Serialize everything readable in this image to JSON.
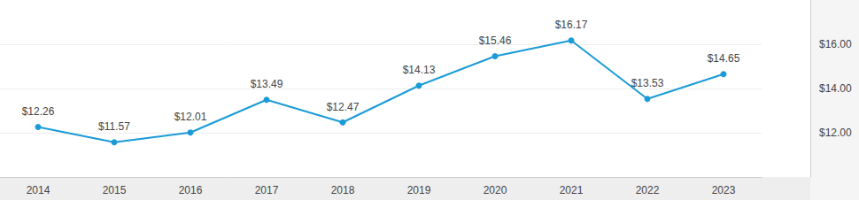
{
  "chart_data": {
    "type": "line",
    "categories": [
      "2014",
      "2015",
      "2016",
      "2017",
      "2018",
      "2019",
      "2020",
      "2021",
      "2022",
      "2023"
    ],
    "values": [
      12.26,
      11.57,
      12.01,
      13.49,
      12.47,
      14.13,
      15.46,
      16.17,
      13.53,
      14.65
    ],
    "value_labels": [
      "$12.26",
      "$11.57",
      "$12.01",
      "$13.49",
      "$12.47",
      "$14.13",
      "$15.46",
      "$16.17",
      "$13.53",
      "$14.65"
    ],
    "color": "#1a9bd7",
    "ylim": [
      10,
      18
    ],
    "yticks": [
      {
        "value": 12,
        "label": "$12.00"
      },
      {
        "value": 14,
        "label": "$14.00"
      },
      {
        "value": 16,
        "label": "$16.00"
      }
    ],
    "grid": true,
    "data_labels": true,
    "marker": "circle"
  }
}
